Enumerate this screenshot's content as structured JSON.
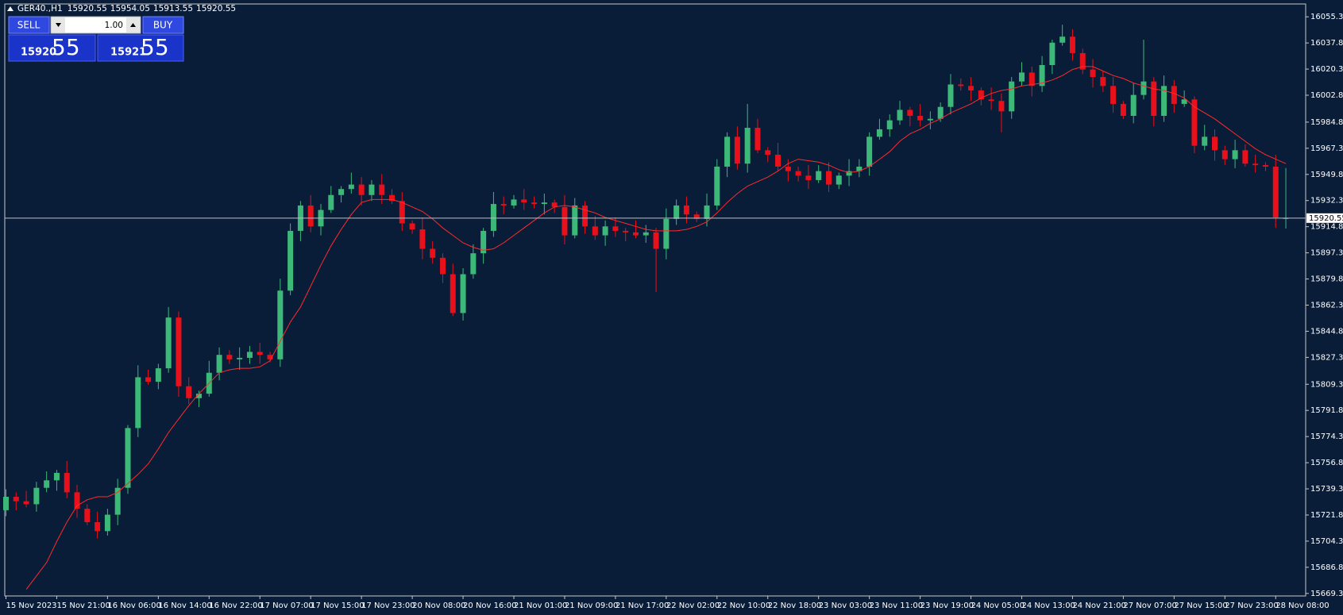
{
  "chart_data": {
    "type": "candlestick",
    "title": "GER40.,H1",
    "last_price": 15920.55,
    "up_color": "#3cb878",
    "down_color": "#e8101a",
    "ylim": [
      15667.6,
      16063.9
    ],
    "yticks": [
      {
        "value": 16055.3,
        "label": "16055.30"
      },
      {
        "value": 16037.8,
        "label": "16037.80"
      },
      {
        "value": 16020.3,
        "label": "16020.30"
      },
      {
        "value": 16002.8,
        "label": "16002.80"
      },
      {
        "value": 15984.8,
        "label": "15984.80"
      },
      {
        "value": 15967.3,
        "label": "15967.30"
      },
      {
        "value": 15949.8,
        "label": "15949.80"
      },
      {
        "value": 15932.3,
        "label": "15932.30"
      },
      {
        "value": 15914.8,
        "label": "15914.80"
      },
      {
        "value": 15897.3,
        "label": "15897.30"
      },
      {
        "value": 15879.8,
        "label": "15879.80"
      },
      {
        "value": 15862.3,
        "label": "15862.30"
      },
      {
        "value": 15844.8,
        "label": "15844.80"
      },
      {
        "value": 15827.3,
        "label": "15827.30"
      },
      {
        "value": 15809.3,
        "label": "15809.30"
      },
      {
        "value": 15791.8,
        "label": "15791.80"
      },
      {
        "value": 15774.3,
        "label": "15774.30"
      },
      {
        "value": 15756.8,
        "label": "15756.80"
      },
      {
        "value": 15739.3,
        "label": "15739.30"
      },
      {
        "value": 15721.8,
        "label": "15721.80"
      },
      {
        "value": 15704.3,
        "label": "15704.30"
      },
      {
        "value": 15686.8,
        "label": "15686.80"
      },
      {
        "value": 15669.3,
        "label": "15669.30"
      }
    ],
    "categories": [
      "15 Nov 2023",
      null,
      null,
      null,
      null,
      "15 Nov 21:00",
      null,
      null,
      null,
      null,
      "16 Nov 06:00",
      null,
      null,
      null,
      null,
      "16 Nov 14:00",
      null,
      null,
      null,
      null,
      "16 Nov 22:00",
      null,
      null,
      null,
      null,
      "17 Nov 07:00",
      null,
      null,
      null,
      null,
      "17 Nov 15:00",
      null,
      null,
      null,
      null,
      "17 Nov 23:00",
      null,
      null,
      null,
      null,
      "20 Nov 08:00",
      null,
      null,
      null,
      null,
      "20 Nov 16:00",
      null,
      null,
      null,
      null,
      "21 Nov 01:00",
      null,
      null,
      null,
      null,
      "21 Nov 09:00",
      null,
      null,
      null,
      null,
      "21 Nov 17:00",
      null,
      null,
      null,
      null,
      "22 Nov 02:00",
      null,
      null,
      null,
      null,
      "22 Nov 10:00",
      null,
      null,
      null,
      null,
      "22 Nov 18:00",
      null,
      null,
      null,
      null,
      "23 Nov 03:00",
      null,
      null,
      null,
      null,
      "23 Nov 11:00",
      null,
      null,
      null,
      null,
      "23 Nov 19:00",
      null,
      null,
      null,
      null,
      "24 Nov 05:00",
      null,
      null,
      null,
      null,
      "24 Nov 13:00",
      null,
      null,
      null,
      null,
      "24 Nov 21:00",
      null,
      null,
      null,
      null,
      "27 Nov 07:00",
      null,
      null,
      null,
      null,
      "27 Nov 15:00",
      null,
      null,
      null,
      null,
      "27 Nov 23:00",
      null,
      null,
      null,
      null,
      "28 Nov 08:00",
      null
    ],
    "open": [
      15725,
      15734,
      15731,
      15729,
      15740,
      15745,
      15750,
      15737,
      15726,
      15717,
      15711,
      15722,
      15740,
      15780,
      15814,
      15811,
      15820,
      15854,
      15808,
      15800,
      15803,
      15817,
      15829,
      15826,
      15827,
      15831,
      15829,
      15826,
      15872,
      15912,
      15929,
      15915,
      15926,
      15936,
      15940,
      15943,
      15936,
      15943,
      15936,
      15932,
      15917,
      15913,
      15900,
      15894,
      15883,
      15857,
      15883,
      15897,
      15912,
      15930,
      15929,
      15933,
      15931,
      15930,
      15931,
      15928,
      15909,
      15929,
      15915,
      15909,
      15915,
      15912,
      15911,
      15909,
      15911,
      15900,
      15920,
      15929,
      15923,
      15920,
      15929,
      15955,
      15975,
      15957,
      15981,
      15966,
      15963,
      15955,
      15952,
      15949,
      15946,
      15952,
      15943,
      15949,
      15952,
      15955,
      15975,
      15980,
      15986,
      15993,
      15989,
      15986,
      15987,
      15995,
      16010,
      16009,
      16006,
      16000,
      15999,
      15992,
      16012,
      16018,
      16009,
      16023,
      16038,
      16042,
      16031,
      16020,
      16015,
      16009,
      15997,
      15989,
      16003,
      16012,
      15989,
      16009,
      15997,
      16000,
      15969,
      15975,
      15966,
      15960,
      15966,
      15957,
      15956,
      15955,
      15920.55
    ],
    "high": [
      15739,
      15737,
      15738,
      15744,
      15751,
      15752,
      15758,
      15742,
      15729,
      15724,
      15726,
      15746,
      15782,
      15822,
      15819,
      15823,
      15861,
      15858,
      15814,
      15805,
      15825,
      15834,
      15832,
      15834,
      15835,
      15837,
      15831,
      15880,
      15917,
      15932,
      15936,
      15930,
      15942,
      15942,
      15951,
      15948,
      15946,
      15950,
      15940,
      15938,
      15919,
      15921,
      15905,
      15897,
      15890,
      15887,
      15903,
      15914,
      15938,
      15935,
      15936,
      15940,
      15935,
      15937,
      15933,
      15936,
      15934,
      15932,
      15922,
      15919,
      15921,
      15914,
      15919,
      15916,
      15914,
      15927,
      15933,
      15935,
      15925,
      15937,
      15960,
      15978,
      15982,
      15997,
      15987,
      15968,
      15971,
      15960,
      15955,
      15956,
      15956,
      15958,
      15951,
      15960,
      15960,
      15978,
      15987,
      15990,
      15999,
      15995,
      15997,
      15992,
      15998,
      16017,
      16014,
      16015,
      16008,
      16008,
      16004,
      16015,
      16025,
      16022,
      16029,
      16040,
      16050,
      16047,
      16034,
      16027,
      16019,
      16015,
      15999,
      16011,
      16040,
      16015,
      16016,
      16013,
      16006,
      16002,
      15983,
      15980,
      15969,
      15973,
      15970,
      15963,
      15958,
      15963,
      15954.05
    ],
    "low": [
      15721,
      15725,
      15727,
      15724,
      15737,
      15738,
      15733,
      15720,
      15715,
      15706,
      15708,
      15715,
      15736,
      15774,
      15809,
      15806,
      15817,
      15801,
      15796,
      15794,
      15801,
      15812,
      15823,
      15819,
      15823,
      15823,
      15824,
      15821,
      15869,
      15905,
      15911,
      15909,
      15924,
      15931,
      15937,
      15929,
      15932,
      15930,
      15930,
      15912,
      15910,
      15893,
      15890,
      15877,
      15855,
      15852,
      15880,
      15890,
      15908,
      15923,
      15927,
      15926,
      15927,
      15923,
      15924,
      15903,
      15907,
      15910,
      15906,
      15902,
      15908,
      15905,
      15907,
      15904,
      15871,
      15893,
      15916,
      15917,
      15918,
      15915,
      15926,
      15948,
      15953,
      15951,
      15964,
      15958,
      15952,
      15945,
      15945,
      15940,
      15944,
      15938,
      15940,
      15942,
      15948,
      15949,
      15973,
      15975,
      15983,
      15982,
      15982,
      15980,
      15985,
      15990,
      16006,
      15999,
      15996,
      15993,
      15978,
      15987,
      16009,
      16002,
      16005,
      16017,
      16036,
      16026,
      16017,
      16008,
      16005,
      15991,
      15987,
      15984,
      16000,
      15982,
      15985,
      15991,
      15995,
      15964,
      15966,
      15959,
      15956,
      15954,
      15955,
      15951,
      15952,
      15914,
      15913.55
    ],
    "close": [
      15734,
      15731,
      15729,
      15740,
      15745,
      15750,
      15737,
      15726,
      15717,
      15711,
      15722,
      15740,
      15780,
      15814,
      15811,
      15820,
      15854,
      15808,
      15800,
      15803,
      15817,
      15829,
      15826,
      15827,
      15831,
      15829,
      15826,
      15872,
      15912,
      15929,
      15915,
      15926,
      15936,
      15940,
      15943,
      15936,
      15943,
      15936,
      15932,
      15917,
      15913,
      15900,
      15894,
      15883,
      15857,
      15883,
      15897,
      15912,
      15930,
      15929,
      15933,
      15931,
      15930,
      15931,
      15928,
      15909,
      15929,
      15915,
      15909,
      15915,
      15912,
      15911,
      15909,
      15911,
      15900,
      15920,
      15929,
      15923,
      15920,
      15929,
      15955,
      15975,
      15957,
      15981,
      15966,
      15963,
      15955,
      15952,
      15949,
      15946,
      15952,
      15943,
      15949,
      15952,
      15955,
      15975,
      15980,
      15986,
      15993,
      15989,
      15986,
      15987,
      15995,
      16010,
      16009,
      16006,
      16000,
      15999,
      15992,
      16012,
      16018,
      16009,
      16023,
      16038,
      16042,
      16031,
      16020,
      16015,
      16009,
      15997,
      15989,
      16003,
      16012,
      15989,
      16009,
      15997,
      16000,
      15969,
      15975,
      15966,
      15960,
      15966,
      15957,
      15956,
      15955,
      15921,
      15920.55
    ],
    "ma": {
      "color": "#ff2a2a",
      "values": [
        null,
        null,
        15672,
        15681,
        15690,
        15704,
        15717,
        15728,
        15732,
        15734,
        15734,
        15737,
        15743,
        15749,
        15756,
        15766,
        15777,
        15786,
        15795,
        15803,
        15810,
        15817,
        15819,
        15820,
        15820,
        15821,
        15825,
        15838,
        15851,
        15861,
        15875,
        15889,
        15902,
        15913,
        15923,
        15931,
        15933,
        15933,
        15933,
        15931,
        15928,
        15925,
        15920,
        15914,
        15909,
        15904,
        15901,
        15899,
        15900,
        15904,
        15909,
        15914,
        15919,
        15924,
        15928,
        15929,
        15928,
        15926,
        15924,
        15921,
        15919,
        15917,
        15915,
        15913,
        15912,
        15912,
        15912,
        15913,
        15915,
        15918,
        15924,
        15931,
        15937,
        15942,
        15945,
        15948,
        15952,
        15957,
        15960,
        15959,
        15958,
        15956,
        15953,
        15951,
        15952,
        15955,
        15960,
        15965,
        15972,
        15977,
        15980,
        15984,
        15987,
        15991,
        15994,
        15997,
        16001,
        16004,
        16006,
        16007,
        16009,
        16010,
        16011,
        16013,
        16016,
        16020,
        16022,
        16022,
        16019,
        16016,
        16014,
        16011,
        16009,
        16007,
        16006,
        16004,
        16001,
        15995,
        15991,
        15987,
        15982,
        15977,
        15972,
        15967,
        15963,
        15960,
        15957
      ]
    }
  },
  "trade_panel": {
    "sell": "SELL",
    "buy": "BUY",
    "lots": "1.00",
    "bid_main": "15920",
    "bid_pips": "55",
    "ask_main": "15921",
    "ask_pips": "55"
  }
}
